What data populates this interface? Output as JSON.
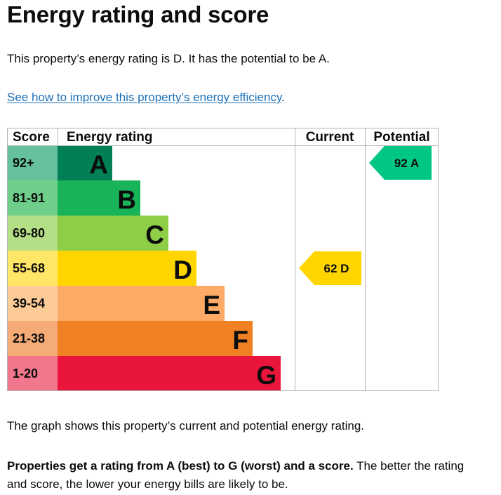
{
  "page": {
    "title": "Energy rating and score",
    "summary": "This property’s energy rating is D. It has the potential to be A.",
    "improve_link": "See how to improve this property’s energy efficiency",
    "improve_suffix": ".",
    "graph_note": "The graph shows this property’s current and potential energy rating.",
    "rating_note_bold": "Properties get a rating from A (best) to G (worst) and a score.",
    "rating_note_rest": " The better the rating and score, the lower your energy bills are likely to be."
  },
  "chart_data": {
    "type": "table",
    "columns": [
      "Score",
      "Energy rating",
      "Current",
      "Potential"
    ],
    "bands": [
      {
        "letter": "A",
        "score_range": "92+",
        "bar_color": "#008054",
        "score_color": "#64c19b"
      },
      {
        "letter": "B",
        "score_range": "81-91",
        "bar_color": "#19b459",
        "score_color": "#6fcf8a"
      },
      {
        "letter": "C",
        "score_range": "69-80",
        "bar_color": "#8dce46",
        "score_color": "#b5df86"
      },
      {
        "letter": "D",
        "score_range": "55-68",
        "bar_color": "#ffd500",
        "score_color": "#ffe666"
      },
      {
        "letter": "E",
        "score_range": "39-54",
        "bar_color": "#fcaa65",
        "score_color": "#fdcb98"
      },
      {
        "letter": "F",
        "score_range": "21-38",
        "bar_color": "#ef8023",
        "score_color": "#f4ab75"
      },
      {
        "letter": "G",
        "score_range": "1-20",
        "bar_color": "#e9153b",
        "score_color": "#f2778c"
      }
    ],
    "current": {
      "score": 62,
      "rating": "D",
      "label": "62  D",
      "color": "#ffd500"
    },
    "potential": {
      "score": 92,
      "rating": "A",
      "label": "92  A",
      "color": "#00c781"
    }
  }
}
